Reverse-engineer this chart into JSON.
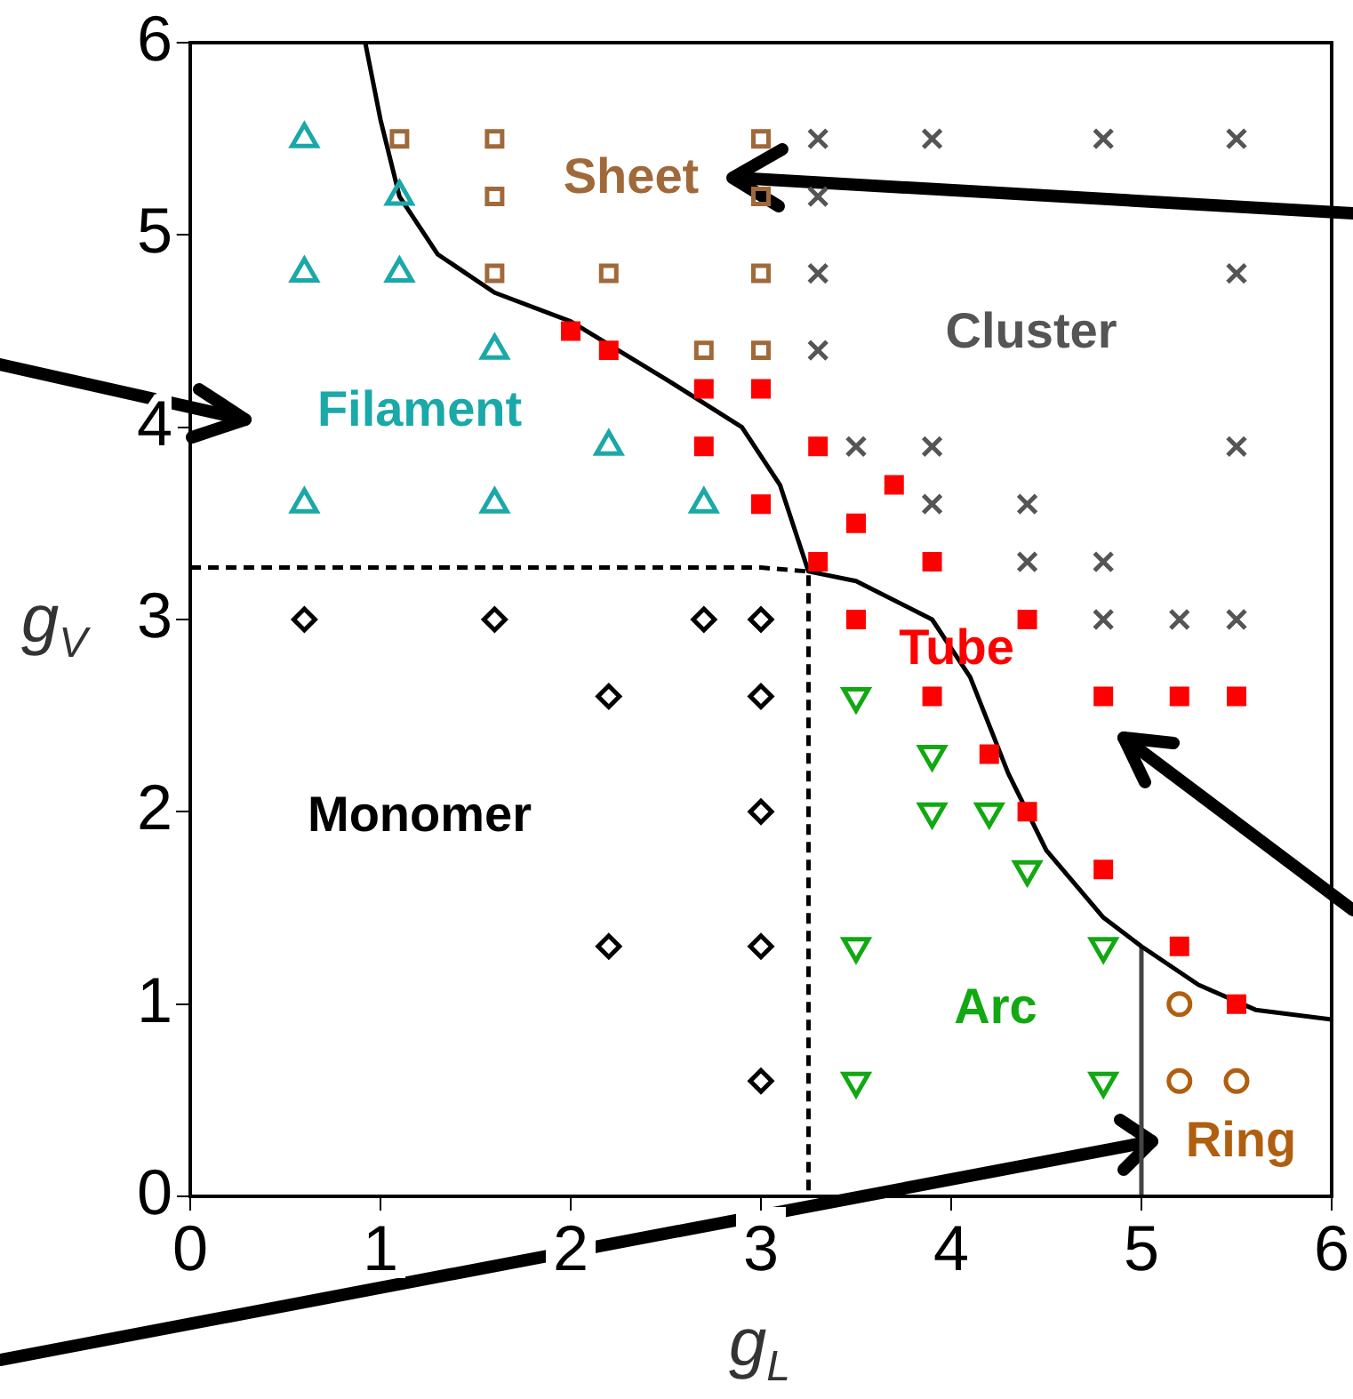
{
  "chart_data": {
    "type": "scatter",
    "xlabel": "g$_{L}$",
    "ylabel": "g$_{V}$",
    "xlim": [
      0,
      6
    ],
    "ylim": [
      0,
      6
    ],
    "xticks": [
      0,
      1,
      2,
      3,
      4,
      5,
      6
    ],
    "yticks": [
      0,
      1,
      2,
      3,
      4,
      5,
      6
    ],
    "grid": false,
    "legend": false,
    "series": [
      {
        "color": "#1aa8a8",
        "marker": "triangle",
        "x": [
          0.6,
          1.1,
          0.6,
          1.1,
          1.6,
          2.2,
          0.6,
          1.6,
          2.7
        ],
        "values": [
          5.5,
          5.2,
          4.8,
          4.8,
          4.4,
          3.9,
          3.6,
          3.6,
          3.6
        ]
      },
      {
        "color": "#a0693a",
        "marker": "square",
        "x": [
          1.1,
          1.6,
          1.6,
          1.6,
          2.2,
          2.7,
          3.0,
          3.0,
          3.0,
          3.0
        ],
        "values": [
          5.5,
          5.5,
          5.2,
          4.8,
          4.8,
          4.4,
          4.4,
          4.8,
          5.5,
          5.2
        ]
      },
      {
        "color": "#555555",
        "marker": "cross",
        "x": [
          3.3,
          3.9,
          4.8,
          5.5,
          3.3,
          3.3,
          5.5,
          3.3,
          3.5,
          3.9,
          5.5,
          3.9,
          4.4,
          4.4,
          4.8,
          4.8,
          5.2,
          5.5
        ],
        "values": [
          5.5,
          5.5,
          5.5,
          5.5,
          5.2,
          4.8,
          4.8,
          4.4,
          3.9,
          3.9,
          3.9,
          3.6,
          3.6,
          3.3,
          3.3,
          3.0,
          3.0,
          3.0
        ]
      },
      {
        "color": "#ff0000",
        "marker": "square-filled",
        "x": [
          2.0,
          2.2,
          2.7,
          3.0,
          2.7,
          3.0,
          3.3,
          3.7,
          3.5,
          3.3,
          3.9,
          3.5,
          4.4,
          3.9,
          4.8,
          5.2,
          5.5,
          4.2,
          4.4,
          4.8,
          5.2,
          5.5
        ],
        "values": [
          4.5,
          4.4,
          4.2,
          4.2,
          3.9,
          3.6,
          3.9,
          3.7,
          3.5,
          3.3,
          3.3,
          3.0,
          3.0,
          2.6,
          2.6,
          2.6,
          2.6,
          2.3,
          2.0,
          1.7,
          1.3,
          1.0
        ]
      },
      {
        "color": "#000000",
        "marker": "diamond",
        "x": [
          0.6,
          1.6,
          2.7,
          3.0,
          2.2,
          3.0,
          3.0,
          2.2,
          3.0,
          3.0
        ],
        "values": [
          3.0,
          3.0,
          3.0,
          3.0,
          2.6,
          2.6,
          2.0,
          1.3,
          1.3,
          0.6
        ]
      },
      {
        "color": "#12a812",
        "marker": "triangle-down",
        "x": [
          3.5,
          3.9,
          3.9,
          4.2,
          4.4,
          3.5,
          4.8,
          3.5,
          4.8
        ],
        "values": [
          2.6,
          2.3,
          2.0,
          2.0,
          1.7,
          1.3,
          1.3,
          0.6,
          0.6
        ]
      },
      {
        "color": "#b05f10",
        "marker": "circle",
        "x": [
          5.2,
          5.2,
          5.5
        ],
        "values": [
          1.0,
          0.6,
          0.6
        ]
      },
      {
        "type": "line",
        "color": "#000000",
        "marker": "none",
        "line_style": "solid",
        "x": [
          0.92,
          1.0,
          1.1,
          1.3,
          1.6,
          2.0,
          2.5,
          2.9,
          3.1,
          3.2,
          3.25,
          3.5,
          3.9,
          4.1,
          4.3,
          4.5,
          4.8,
          5.0,
          5.3,
          5.6,
          6.0
        ],
        "values": [
          6.0,
          5.6,
          5.2,
          4.9,
          4.7,
          4.55,
          4.25,
          4.0,
          3.7,
          3.4,
          3.25,
          3.2,
          3.0,
          2.7,
          2.2,
          1.8,
          1.45,
          1.3,
          1.1,
          0.97,
          0.92
        ]
      },
      {
        "type": "line",
        "color": "#000000",
        "marker": "none",
        "line_style": "dashed",
        "x": [
          0,
          3.0,
          3.25,
          3.25
        ],
        "values": [
          3.27,
          3.27,
          3.25,
          0
        ]
      },
      {
        "type": "line",
        "color": "#444444",
        "marker": "none",
        "line_style": "solid",
        "x": [
          5.0,
          5.0
        ],
        "values": [
          0,
          1.3
        ]
      }
    ],
    "annotations": [
      "Filament",
      "Sheet",
      "Cluster",
      "Tube",
      "Monomer",
      "Arc",
      "Ring"
    ]
  }
}
